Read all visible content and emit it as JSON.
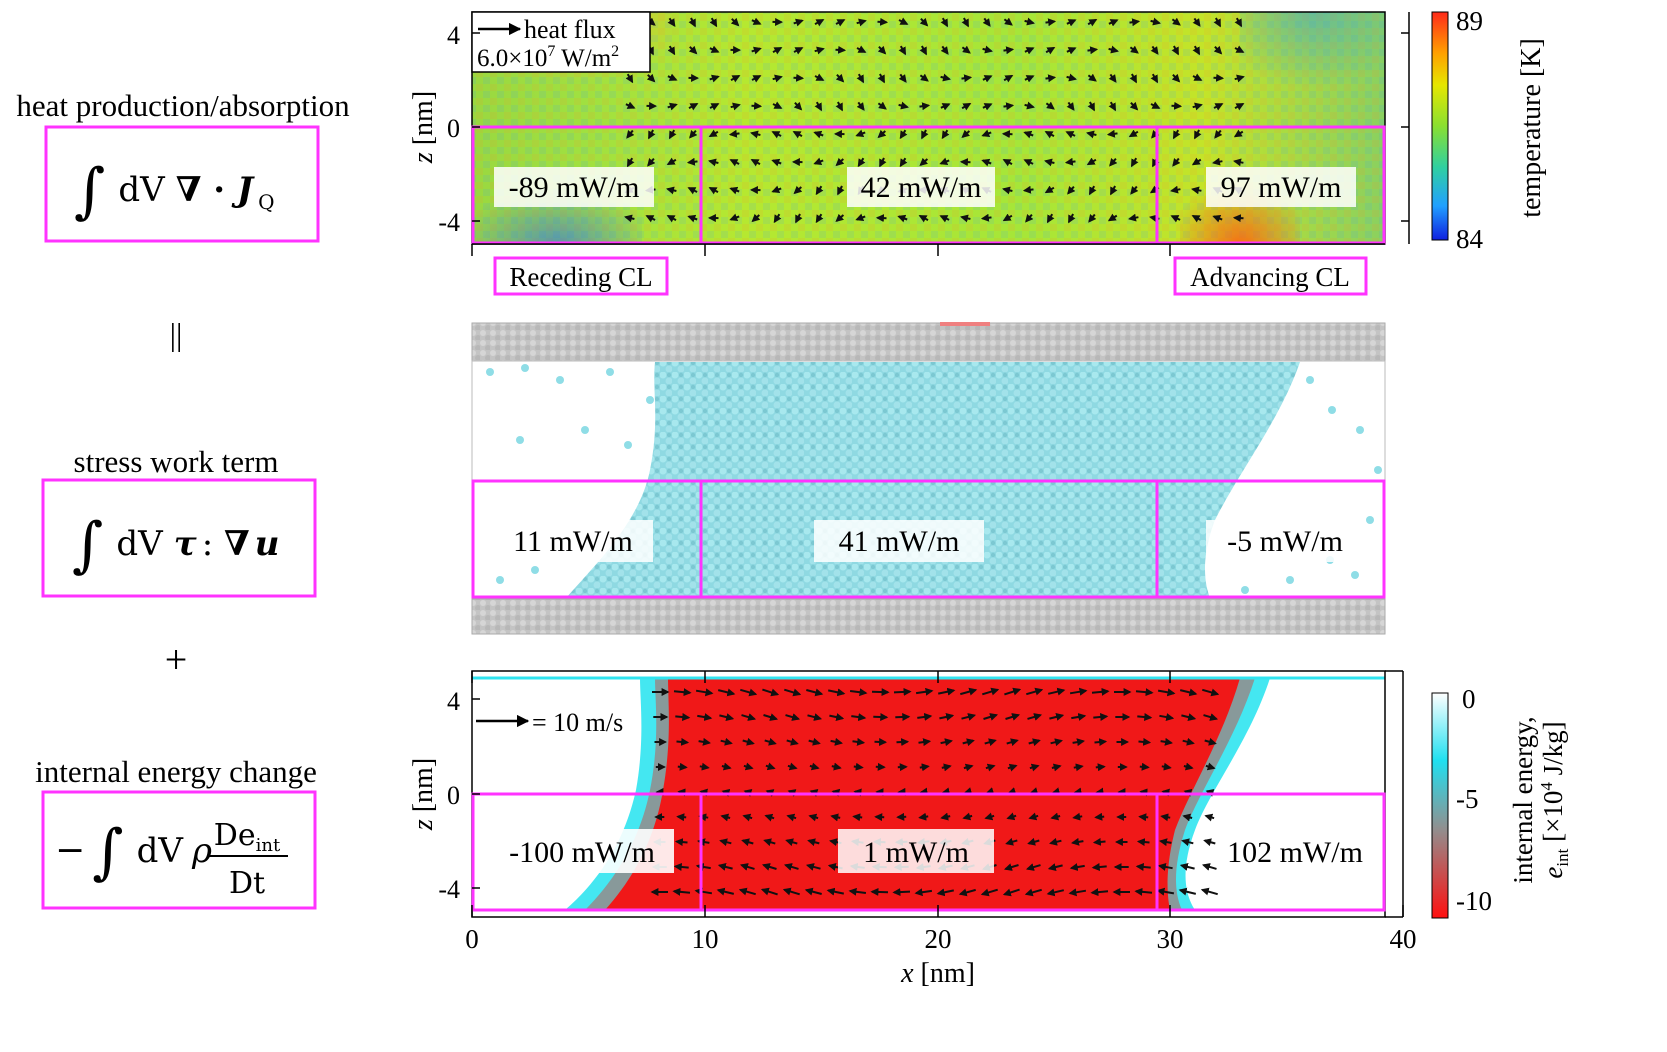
{
  "left_column": {
    "heat_title": "heat production/absorption",
    "heat_formula": {
      "integral": "∫",
      "dv": "dV",
      "op": "∇ · ",
      "j": "J",
      "sub": "Q"
    },
    "equals_sign": "||",
    "stress_title": "stress work term",
    "stress_formula": {
      "integral": "∫",
      "dv": "dV",
      "tau": "τ",
      "colon": " : ",
      "op": "∇",
      "u": "u"
    },
    "plus_sign": "+",
    "internal_title": "internal energy change",
    "internal_formula": {
      "minus": "−",
      "integral": "∫",
      "dv": "dV",
      "rho": "ρ",
      "num_d": "De",
      "num_sub": "int",
      "den": "Dt"
    }
  },
  "top_panel": {
    "ylabel_var": "z",
    "ylabel_unit": " [nm]",
    "yticks": [
      "4",
      "0",
      "-4"
    ],
    "legend": {
      "line1": "heat flux",
      "line2_a": "6.0×10",
      "line2_exp": "7",
      "line2_b": " W/m",
      "line2_exp2": "2"
    },
    "regions": [
      "-89 mW/m",
      "42 mW/m",
      "97 mW/m"
    ],
    "tag_left": "Receding CL",
    "tag_right": "Advancing CL",
    "colorbar": {
      "label": "temperature [K]",
      "max": "89",
      "min": "84",
      "colors": [
        "#ff2a1a",
        "#ffb000",
        "#e6e600",
        "#8ae030",
        "#30d0a0",
        "#20a0ff",
        "#1020e0"
      ]
    }
  },
  "middle_panel": {
    "regions": [
      "11 mW/m",
      "41 mW/m",
      "-5 mW/m"
    ],
    "colors": {
      "liquid": "#8fdde6",
      "wall": "#c8c8c8"
    }
  },
  "bottom_panel": {
    "ylabel_var": "z",
    "ylabel_unit": " [nm]",
    "yticks": [
      "4",
      "0",
      "-4"
    ],
    "xticks": [
      "0",
      "10",
      "20",
      "30",
      "40"
    ],
    "xlabel_var": "x",
    "xlabel_unit": " [nm]",
    "legend": "= 10 m/s",
    "regions": [
      "-100 mW/m",
      "1 mW/m",
      "102 mW/m"
    ],
    "colorbar": {
      "label1": "internal energy,",
      "label2_var": "e",
      "label2_sub": "int",
      "label2_unit": " [×10",
      "label2_exp": "4",
      "label2_tail": " J/kg]",
      "ticks": [
        "0",
        "-5",
        "-10"
      ],
      "colors": [
        "#ffffff",
        "#20e0f0",
        "#909090",
        "#ff1010"
      ]
    }
  },
  "colors": {
    "magenta": "#ff33ff",
    "bulk_red": "#f01818",
    "green_bg": "#a8e830",
    "arrow": "#111111"
  }
}
